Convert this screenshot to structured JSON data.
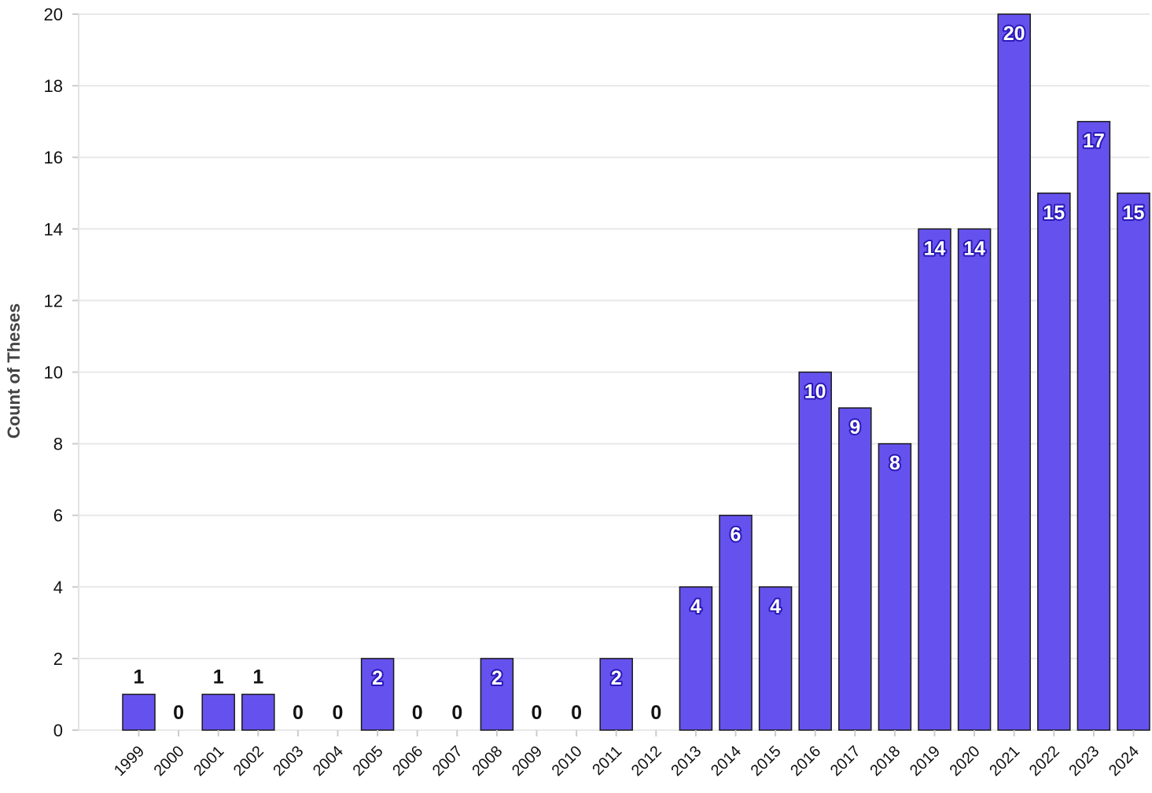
{
  "chart_data": {
    "type": "bar",
    "title": "",
    "xlabel": "",
    "ylabel": "Count of Theses",
    "ylim": [
      0,
      20
    ],
    "yticks": [
      0,
      2,
      4,
      6,
      8,
      10,
      12,
      14,
      16,
      18,
      20
    ],
    "grid": true,
    "categories": [
      "1999",
      "2000",
      "2001",
      "2002",
      "2003",
      "2004",
      "2005",
      "2006",
      "2007",
      "2008",
      "2009",
      "2010",
      "2011",
      "2012",
      "2013",
      "2014",
      "2015",
      "2016",
      "2017",
      "2018",
      "2019",
      "2020",
      "2021",
      "2022",
      "2023",
      "2024"
    ],
    "values": [
      1,
      0,
      1,
      1,
      0,
      0,
      2,
      0,
      0,
      2,
      0,
      0,
      2,
      0,
      4,
      6,
      4,
      10,
      9,
      8,
      14,
      14,
      20,
      15,
      17,
      15
    ],
    "bar_color": "#6552ee",
    "bar_stroke": "#1a1a1a",
    "grid_color": "#e8e8e8"
  }
}
